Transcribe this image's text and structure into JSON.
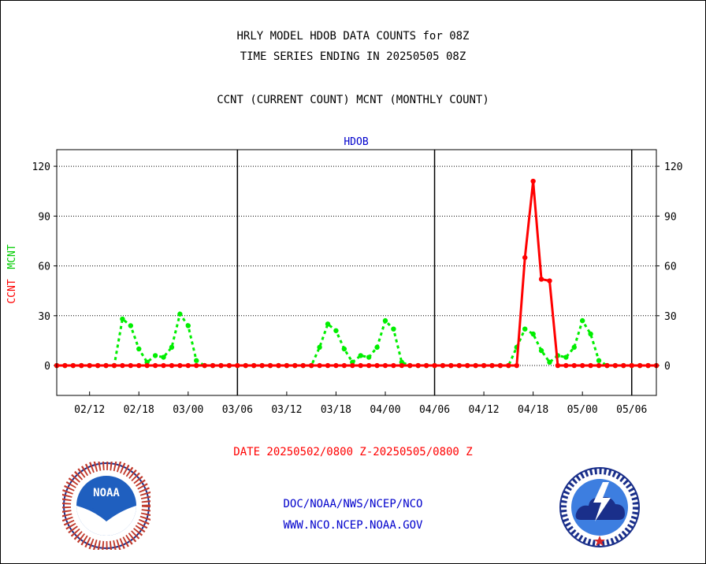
{
  "titles": {
    "line1": "HRLY MODEL HDOB DATA COUNTS for 08Z",
    "line2": "TIME SERIES ENDING IN 20250505 08Z",
    "line3": "CCNT (CURRENT COUNT) MCNT (MONTHLY COUNT)"
  },
  "date_range": "DATE 20250502/0800 Z-20250505/0800 Z",
  "footer": {
    "line1": "DOC/NOAA/NWS/NCEP/NCO",
    "line2": "WWW.NCO.NCEP.NOAA.GOV"
  },
  "logos": {
    "left": "noaa-logo-icon",
    "left_text": "NOAA",
    "right": "nws-logo-icon"
  },
  "colors": {
    "ccnt": "#ff0000",
    "mcnt": "#00ee00",
    "panel_title": "#0000cc",
    "date": "#ff0000",
    "footer": "#0000cc"
  },
  "chart_data": {
    "type": "line",
    "panel_title": "HDOB",
    "ylabel_ccnt": "CCNT",
    "ylabel_mcnt": "MCNT",
    "yticks": [
      0,
      30,
      60,
      90,
      120
    ],
    "ylim": [
      -18,
      130
    ],
    "xlim": [
      0,
      73
    ],
    "xticks": [
      {
        "x": 4,
        "label": "02/12"
      },
      {
        "x": 10,
        "label": "02/18"
      },
      {
        "x": 16,
        "label": "03/00"
      },
      {
        "x": 22,
        "label": "03/06"
      },
      {
        "x": 28,
        "label": "03/12"
      },
      {
        "x": 34,
        "label": "03/18"
      },
      {
        "x": 40,
        "label": "04/00"
      },
      {
        "x": 46,
        "label": "04/06"
      },
      {
        "x": 52,
        "label": "04/12"
      },
      {
        "x": 58,
        "label": "04/18"
      },
      {
        "x": 64,
        "label": "05/00"
      },
      {
        "x": 70,
        "label": "05/06"
      }
    ],
    "day_dividers": [
      22,
      46,
      70
    ],
    "grid": true,
    "series": [
      {
        "name": "MCNT",
        "style": "dotted",
        "values": [
          0,
          0,
          0,
          0,
          0,
          0,
          0,
          0,
          28,
          24,
          10,
          2,
          6,
          5,
          11,
          31,
          24,
          3,
          0,
          0,
          0,
          0,
          0,
          0,
          0,
          0,
          0,
          0,
          0,
          0,
          0,
          0,
          11,
          25,
          21,
          10,
          2,
          6,
          5,
          11,
          27,
          22,
          2,
          0,
          0,
          0,
          0,
          0,
          0,
          0,
          0,
          0,
          0,
          0,
          0,
          0,
          11,
          22,
          19,
          9,
          2,
          6,
          5,
          11,
          27,
          19,
          3,
          0,
          0,
          0,
          0,
          0,
          0,
          0
        ]
      },
      {
        "name": "CCNT",
        "style": "solid",
        "values": [
          0,
          0,
          0,
          0,
          0,
          0,
          0,
          0,
          0,
          0,
          0,
          0,
          0,
          0,
          0,
          0,
          0,
          0,
          0,
          0,
          0,
          0,
          0,
          0,
          0,
          0,
          0,
          0,
          0,
          0,
          0,
          0,
          0,
          0,
          0,
          0,
          0,
          0,
          0,
          0,
          0,
          0,
          0,
          0,
          0,
          0,
          0,
          0,
          0,
          0,
          0,
          0,
          0,
          0,
          0,
          0,
          0,
          65,
          111,
          52,
          51,
          0,
          0,
          0,
          0,
          0,
          0,
          0,
          0,
          0,
          0,
          0,
          0,
          0
        ]
      }
    ]
  }
}
